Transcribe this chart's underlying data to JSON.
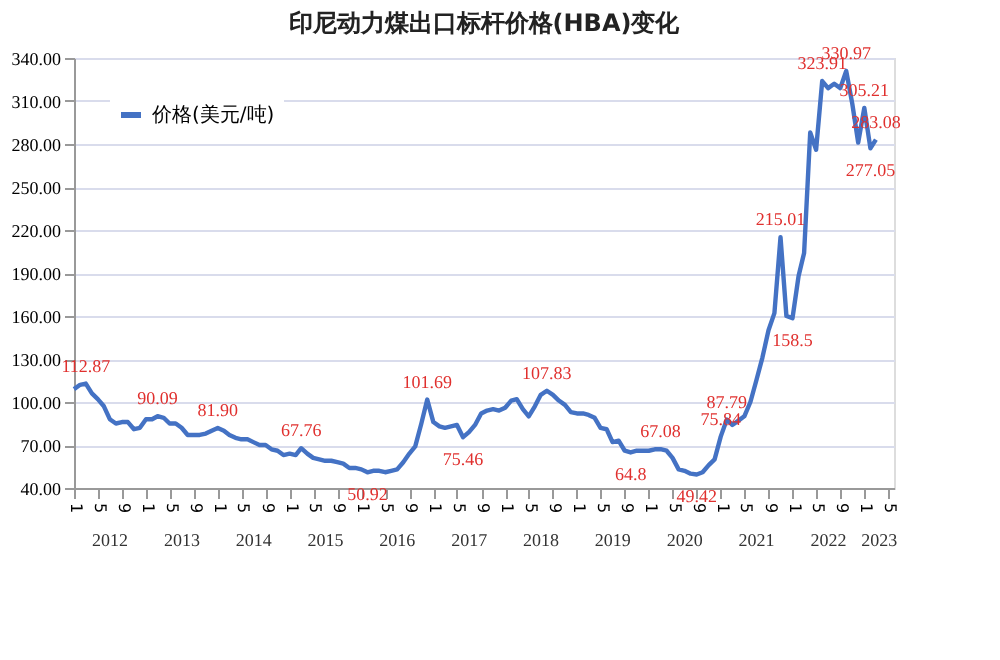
{
  "chart_data": {
    "type": "line",
    "title": "印尼动力煤出口标杆价格(HBA)变化",
    "x": [
      "2012-01",
      "2012-02",
      "2012-03",
      "2012-04",
      "2012-05",
      "2012-06",
      "2012-07",
      "2012-08",
      "2012-09",
      "2012-10",
      "2012-11",
      "2012-12",
      "2013-01",
      "2013-02",
      "2013-03",
      "2013-04",
      "2013-05",
      "2013-06",
      "2013-07",
      "2013-08",
      "2013-09",
      "2013-10",
      "2013-11",
      "2013-12",
      "2014-01",
      "2014-02",
      "2014-03",
      "2014-04",
      "2014-05",
      "2014-06",
      "2014-07",
      "2014-08",
      "2014-09",
      "2014-10",
      "2014-11",
      "2014-12",
      "2015-01",
      "2015-02",
      "2015-03",
      "2015-04",
      "2015-05",
      "2015-06",
      "2015-07",
      "2015-08",
      "2015-09",
      "2015-10",
      "2015-11",
      "2015-12",
      "2016-01",
      "2016-02",
      "2016-03",
      "2016-04",
      "2016-05",
      "2016-06",
      "2016-07",
      "2016-08",
      "2016-09",
      "2016-10",
      "2016-11",
      "2016-12",
      "2017-01",
      "2017-02",
      "2017-03",
      "2017-04",
      "2017-05",
      "2017-06",
      "2017-07",
      "2017-08",
      "2017-09",
      "2017-10",
      "2017-11",
      "2017-12",
      "2018-01",
      "2018-02",
      "2018-03",
      "2018-04",
      "2018-05",
      "2018-06",
      "2018-07",
      "2018-08",
      "2018-09",
      "2018-10",
      "2018-11",
      "2018-12",
      "2019-01",
      "2019-02",
      "2019-03",
      "2019-04",
      "2019-05",
      "2019-06",
      "2019-07",
      "2019-08",
      "2019-09",
      "2019-10",
      "2019-11",
      "2019-12",
      "2020-01",
      "2020-02",
      "2020-03",
      "2020-04",
      "2020-05",
      "2020-06",
      "2020-07",
      "2020-08",
      "2020-09",
      "2020-10",
      "2020-11",
      "2020-12",
      "2021-01",
      "2021-02",
      "2021-03",
      "2021-04",
      "2021-05",
      "2021-06",
      "2021-07",
      "2021-08",
      "2021-09",
      "2021-10",
      "2021-11",
      "2021-12",
      "2022-01",
      "2022-02",
      "2022-03",
      "2022-04",
      "2022-05",
      "2022-06",
      "2022-07",
      "2022-08",
      "2022-09",
      "2022-10",
      "2022-11",
      "2022-12",
      "2023-01",
      "2023-02",
      "2023-03"
    ],
    "series": [
      {
        "name": "价格(美元/吨)",
        "color": "#4472c4",
        "values": [
          109,
          112,
          112.87,
          106,
          102,
          97,
          88,
          85,
          86,
          86,
          81,
          82,
          88,
          88,
          90.09,
          89,
          85,
          85,
          82,
          77,
          77,
          77,
          78,
          80,
          81.9,
          80,
          77,
          75,
          74,
          74,
          72,
          70,
          70,
          67,
          66,
          63,
          64,
          63,
          67.76,
          64,
          61,
          60,
          59,
          59,
          58,
          57,
          54,
          54,
          53,
          50.92,
          52,
          52,
          51,
          52,
          53,
          58,
          64,
          69,
          85,
          101.69,
          86,
          83,
          82,
          83,
          84,
          75.46,
          79,
          84,
          92,
          94,
          95,
          94,
          96,
          101,
          102,
          95,
          90,
          97,
          105,
          107.83,
          105,
          101,
          98,
          93,
          92,
          92,
          91,
          89,
          82,
          81,
          72,
          73,
          66,
          64.8,
          66,
          66,
          66,
          67,
          67.08,
          66,
          61,
          53,
          52,
          50,
          49.42,
          51,
          56,
          60,
          75.84,
          87.79,
          84,
          87,
          90,
          100,
          115,
          131,
          150,
          162,
          215.01,
          160,
          158.5,
          188,
          204,
          288,
          276,
          323.91,
          319,
          322,
          319,
          330.97,
          308,
          281,
          305.21,
          277.05,
          283.08
        ],
        "value_labels": [
          null,
          null,
          "112.87",
          null,
          null,
          null,
          null,
          null,
          null,
          null,
          null,
          null,
          null,
          null,
          "90.09",
          null,
          null,
          null,
          null,
          null,
          null,
          null,
          null,
          null,
          "81.90",
          null,
          null,
          null,
          null,
          null,
          null,
          null,
          null,
          null,
          null,
          null,
          null,
          null,
          "67.76",
          null,
          null,
          null,
          null,
          null,
          null,
          null,
          null,
          null,
          null,
          "50.92",
          null,
          null,
          null,
          null,
          null,
          null,
          null,
          null,
          null,
          "101.69",
          null,
          null,
          null,
          null,
          null,
          "75.46",
          null,
          null,
          null,
          null,
          null,
          null,
          null,
          null,
          null,
          null,
          null,
          null,
          null,
          "107.83",
          null,
          null,
          null,
          null,
          null,
          null,
          null,
          null,
          null,
          null,
          null,
          null,
          null,
          "64.8",
          null,
          null,
          null,
          null,
          "67.08",
          null,
          null,
          null,
          null,
          null,
          "49.42",
          null,
          null,
          null,
          "75.84",
          "87.79",
          null,
          null,
          null,
          null,
          null,
          null,
          null,
          null,
          "215.01",
          null,
          "158.5",
          null,
          null,
          null,
          null,
          "323.91",
          null,
          null,
          null,
          "330.97",
          null,
          null,
          "305.21",
          "277.05",
          "283.08"
        ]
      }
    ],
    "xlim": [
      "2012-01",
      "2023-06"
    ],
    "xticks": [
      {
        "value": "2012-01",
        "label": "1"
      },
      {
        "value": "2012-05",
        "label": "5"
      },
      {
        "value": "2012-09",
        "label": "9"
      },
      {
        "value": "2013-01",
        "label": "1"
      },
      {
        "value": "2013-05",
        "label": "5"
      },
      {
        "value": "2013-09",
        "label": "9"
      },
      {
        "value": "2014-01",
        "label": "1"
      },
      {
        "value": "2014-05",
        "label": "5"
      },
      {
        "value": "2014-09",
        "label": "9"
      },
      {
        "value": "2015-01",
        "label": "1"
      },
      {
        "value": "2015-05",
        "label": "5"
      },
      {
        "value": "2015-09",
        "label": "9"
      },
      {
        "value": "2016-01",
        "label": "1"
      },
      {
        "value": "2016-05",
        "label": "5"
      },
      {
        "value": "2016-09",
        "label": "9"
      },
      {
        "value": "2017-01",
        "label": "1"
      },
      {
        "value": "2017-05",
        "label": "5"
      },
      {
        "value": "2017-09",
        "label": "9"
      },
      {
        "value": "2018-01",
        "label": "1"
      },
      {
        "value": "2018-05",
        "label": "5"
      },
      {
        "value": "2018-09",
        "label": "9"
      },
      {
        "value": "2019-01",
        "label": "1"
      },
      {
        "value": "2019-05",
        "label": "5"
      },
      {
        "value": "2019-09",
        "label": "9"
      },
      {
        "value": "2020-01",
        "label": "1"
      },
      {
        "value": "2020-05",
        "label": "5"
      },
      {
        "value": "2020-09",
        "label": "9"
      },
      {
        "value": "2021-01",
        "label": "1"
      },
      {
        "value": "2021-05",
        "label": "5"
      },
      {
        "value": "2021-09",
        "label": "9"
      },
      {
        "value": "2022-01",
        "label": "1"
      },
      {
        "value": "2022-05",
        "label": "5"
      },
      {
        "value": "2022-09",
        "label": "9"
      },
      {
        "value": "2023-01",
        "label": "1"
      },
      {
        "value": "2023-05",
        "label": "5"
      }
    ],
    "annotations": [
      "2012",
      "2013",
      "2014",
      "2015",
      "2016",
      "2017",
      "2018",
      "2019",
      "2020",
      "2021",
      "2022",
      "2023"
    ],
    "ylim": [
      40,
      340
    ],
    "yticks": [
      {
        "value": 40,
        "label": "40.00"
      },
      {
        "value": 70,
        "label": "70.00"
      },
      {
        "value": 100,
        "label": "100.00"
      },
      {
        "value": 130,
        "label": "130.00"
      },
      {
        "value": 160,
        "label": "160.00"
      },
      {
        "value": 190,
        "label": "190.00"
      },
      {
        "value": 220,
        "label": "220.00"
      },
      {
        "value": 250,
        "label": "250.00"
      },
      {
        "value": 280,
        "label": "280.00"
      },
      {
        "value": 310,
        "label": "310.00"
      },
      {
        "value": 340,
        "label": "340.00"
      }
    ],
    "grid": "y",
    "legend": "top left",
    "marker": "none",
    "line_style": "solid"
  }
}
